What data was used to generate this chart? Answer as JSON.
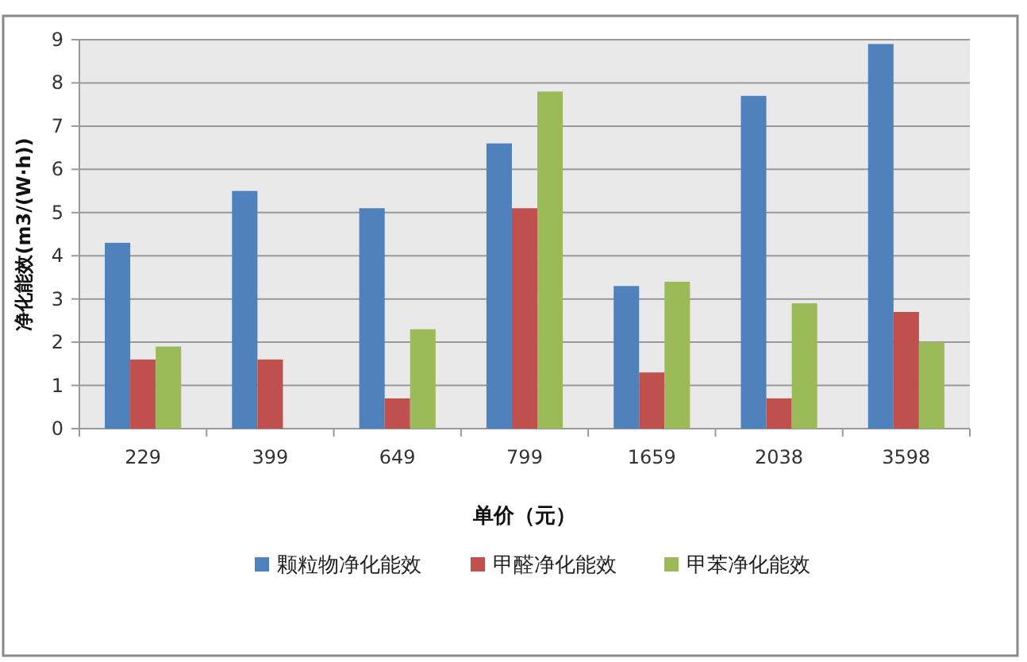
{
  "chart_data": {
    "type": "bar",
    "xlabel": "单价（元）",
    "ylabel": "净化能效(m3/(W·h))",
    "categories": [
      "229",
      "399",
      "649",
      "799",
      "1659",
      "2038",
      "3598"
    ],
    "series": [
      {
        "name": "颗粒物净化能效",
        "color": "#4f81bd",
        "values": [
          4.3,
          5.5,
          5.1,
          6.6,
          3.3,
          7.7,
          8.9
        ]
      },
      {
        "name": "甲醛净化能效",
        "color": "#c0504d",
        "values": [
          1.6,
          1.6,
          0.7,
          5.1,
          1.3,
          0.7,
          2.7
        ]
      },
      {
        "name": "甲苯净化能效",
        "color": "#9bbb59",
        "values": [
          1.9,
          null,
          2.3,
          7.8,
          3.4,
          2.9,
          2.0
        ]
      }
    ],
    "ylim": [
      0,
      9
    ],
    "yticks": [
      0,
      1,
      2,
      3,
      4,
      5,
      6,
      7,
      8,
      9
    ],
    "grid": "y",
    "legend": "bottom"
  }
}
